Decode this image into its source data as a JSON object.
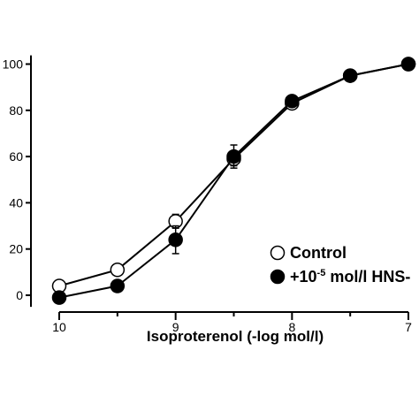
{
  "chart_data": {
    "type": "line",
    "title": "",
    "xlabel": "Isoproterenol (-log mol/l)",
    "ylabel": "",
    "xlim": [
      10,
      7
    ],
    "ylim": [
      -5,
      103
    ],
    "x_ticks": [
      10,
      9,
      8,
      7
    ],
    "y_ticks": [
      0,
      20,
      40,
      60,
      80,
      100
    ],
    "grid": false,
    "legend_position": "bottom-right",
    "series": [
      {
        "name": "Control",
        "marker": "open-circle",
        "color": "#000000",
        "x": [
          10,
          9.5,
          9,
          8.5,
          8,
          7.5,
          7
        ],
        "y": [
          4,
          11,
          32,
          59,
          83,
          95,
          100
        ],
        "error": [
          0,
          0,
          3,
          3,
          2,
          1,
          0
        ]
      },
      {
        "name": "+10-5 mol/l HNS-",
        "legend_text": {
          "prefix": "+10",
          "superscript": "-5",
          "suffix": " mol/l HNS-"
        },
        "marker": "filled-circle",
        "color": "#000000",
        "x": [
          10,
          9.5,
          9,
          8.5,
          8,
          7.5,
          7
        ],
        "y": [
          -1,
          4,
          24,
          60,
          84,
          95,
          100
        ],
        "error": [
          0,
          0,
          6,
          5,
          2,
          1,
          0
        ]
      }
    ]
  }
}
